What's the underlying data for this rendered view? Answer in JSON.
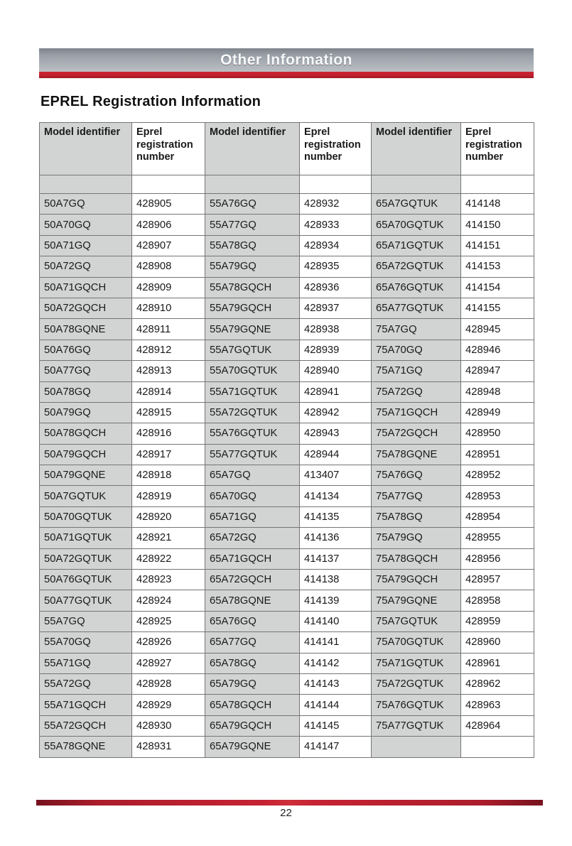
{
  "page": {
    "banner_title": "Other Information",
    "section_title": "EPREL Registration Information",
    "page_number": "22"
  },
  "colors": {
    "accent_red": "#c2202e",
    "banner_gray_top": "#7d838b",
    "banner_gray_bottom": "#bcc0c4",
    "cell_gray": "#d2d3d3",
    "table_border": "#757575"
  },
  "table": {
    "header": [
      "Model identifier",
      "Eprel registration number",
      "Model identifier",
      "Eprel registration number",
      "Model identifier",
      "Eprel registration number"
    ],
    "rows": [
      [
        "50A7GQ",
        "428905",
        "55A76GQ",
        "428932",
        "65A7GQTUK",
        "414148"
      ],
      [
        "50A70GQ",
        "428906",
        "55A77GQ",
        "428933",
        "65A70GQTUK",
        "414150"
      ],
      [
        "50A71GQ",
        "428907",
        "55A78GQ",
        "428934",
        "65A71GQTUK",
        "414151"
      ],
      [
        "50A72GQ",
        "428908",
        "55A79GQ",
        "428935",
        "65A72GQTUK",
        "414153"
      ],
      [
        "50A71GQCH",
        "428909",
        "55A78GQCH",
        "428936",
        "65A76GQTUK",
        "414154"
      ],
      [
        "50A72GQCH",
        "428910",
        "55A79GQCH",
        "428937",
        "65A77GQTUK",
        "414155"
      ],
      [
        "50A78GQNE",
        "428911",
        "55A79GQNE",
        "428938",
        "75A7GQ",
        "428945"
      ],
      [
        "50A76GQ",
        "428912",
        "55A7GQTUK",
        "428939",
        "75A70GQ",
        "428946"
      ],
      [
        "50A77GQ",
        "428913",
        "55A70GQTUK",
        "428940",
        "75A71GQ",
        "428947"
      ],
      [
        "50A78GQ",
        "428914",
        "55A71GQTUK",
        "428941",
        "75A72GQ",
        "428948"
      ],
      [
        "50A79GQ",
        "428915",
        "55A72GQTUK",
        "428942",
        "75A71GQCH",
        "428949"
      ],
      [
        "50A78GQCH",
        "428916",
        "55A76GQTUK",
        "428943",
        "75A72GQCH",
        "428950"
      ],
      [
        "50A79GQCH",
        "428917",
        "55A77GQTUK",
        "428944",
        "75A78GQNE",
        "428951"
      ],
      [
        "50A79GQNE",
        "428918",
        "65A7GQ",
        "413407",
        "75A76GQ",
        "428952"
      ],
      [
        "50A7GQTUK",
        "428919",
        "65A70GQ",
        "414134",
        "75A77GQ",
        "428953"
      ],
      [
        "50A70GQTUK",
        "428920",
        "65A71GQ",
        "414135",
        "75A78GQ",
        "428954"
      ],
      [
        "50A71GQTUK",
        "428921",
        "65A72GQ",
        "414136",
        "75A79GQ",
        "428955"
      ],
      [
        "50A72GQTUK",
        "428922",
        "65A71GQCH",
        "414137",
        "75A78GQCH",
        "428956"
      ],
      [
        "50A76GQTUK",
        "428923",
        "65A72GQCH",
        "414138",
        "75A79GQCH",
        "428957"
      ],
      [
        "50A77GQTUK",
        "428924",
        "65A78GQNE",
        "414139",
        "75A79GQNE",
        "428958"
      ],
      [
        "55A7GQ",
        "428925",
        "65A76GQ",
        "414140",
        "75A7GQTUK",
        "428959"
      ],
      [
        "55A70GQ",
        "428926",
        "65A77GQ",
        "414141",
        "75A70GQTUK",
        "428960"
      ],
      [
        "55A71GQ",
        "428927",
        "65A78GQ",
        "414142",
        "75A71GQTUK",
        "428961"
      ],
      [
        "55A72GQ",
        "428928",
        "65A79GQ",
        "414143",
        "75A72GQTUK",
        "428962"
      ],
      [
        "55A71GQCH",
        "428929",
        "65A78GQCH",
        "414144",
        "75A76GQTUK",
        "428963"
      ],
      [
        "55A72GQCH",
        "428930",
        "65A79GQCH",
        "414145",
        "75A77GQTUK",
        "428964"
      ],
      [
        "55A78GQNE",
        "428931",
        "65A79GQNE",
        "414147",
        "",
        ""
      ]
    ]
  }
}
